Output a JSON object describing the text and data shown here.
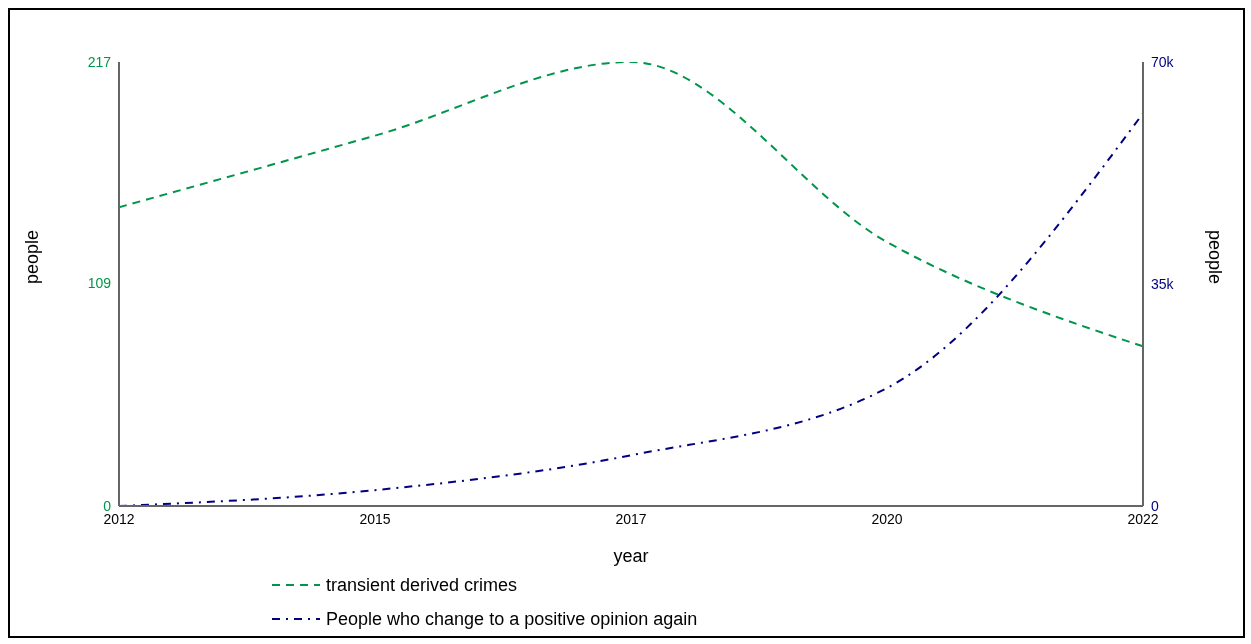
{
  "chart_data": {
    "type": "line",
    "xlabel": "year",
    "ylabel": "people",
    "y2label": "people",
    "categories": [
      "2012",
      "2015",
      "2017",
      "2020",
      "2022"
    ],
    "ylim": [
      0,
      217
    ],
    "yticks": [
      0,
      109,
      217
    ],
    "y2lim": [
      0,
      70000
    ],
    "y2ticks": [
      {
        "value": 0,
        "label": "0"
      },
      {
        "value": 35000,
        "label": "35k"
      },
      {
        "value": 70000,
        "label": "70k"
      }
    ],
    "series": [
      {
        "name": "transient derived crimes",
        "color": "#00954a",
        "line_style": "dashed",
        "values": [
          146,
          181,
          217,
          129,
          78
        ]
      },
      {
        "name": "People who change to a positive opinion again",
        "color": "#000080",
        "line_style": "dashdot",
        "axis": "y2",
        "values": [
          0,
          2500,
          8000,
          18600,
          61900
        ]
      }
    ],
    "grid": false,
    "legend": "bottom",
    "marker": "none"
  }
}
